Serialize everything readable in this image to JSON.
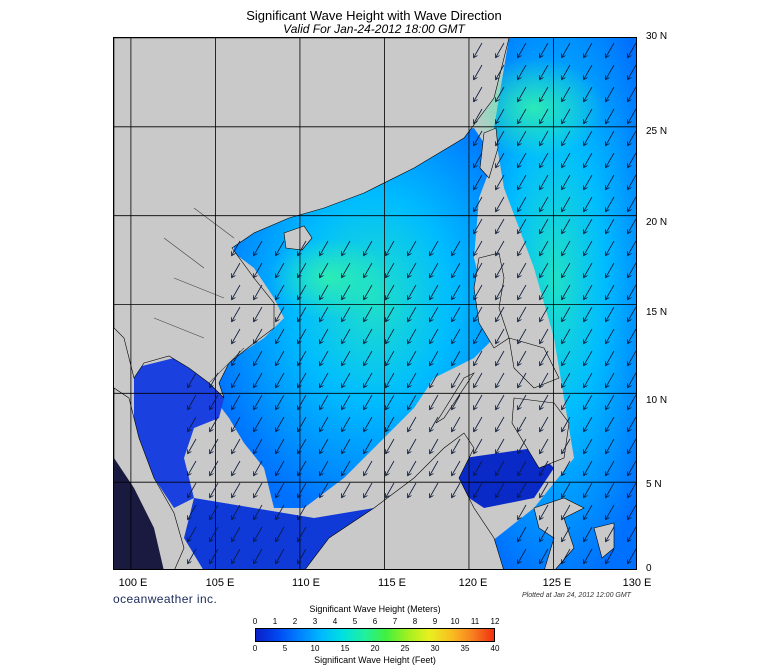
{
  "title": "Significant Wave Height with Wave Direction",
  "subtitle": "Valid For Jan-24-2012 18:00 GMT",
  "lat_labels": [
    "30 N",
    "25 N",
    "20 N",
    "15 N",
    "10 N",
    "5 N",
    "0"
  ],
  "lon_labels": [
    "100 E",
    "105 E",
    "110 E",
    "115 E",
    "120 E",
    "125 E",
    "130 E"
  ],
  "brand": "oceanweather inc.",
  "plotted": "Plotted at Jan 24, 2012 12:00 GMT",
  "colorbar": {
    "title_top": "Significant Wave Height (Meters)",
    "title_bottom": "Significant Wave Height (Feet)",
    "meters": [
      "0",
      "1",
      "2",
      "3",
      "4",
      "5",
      "6",
      "7",
      "8",
      "9",
      "10",
      "11",
      "12"
    ],
    "feet": [
      "0",
      "5",
      "10",
      "15",
      "20",
      "25",
      "30",
      "35",
      "40"
    ],
    "colors": [
      "#0a1fc8",
      "#0048f0",
      "#0080ff",
      "#00b8ff",
      "#00e0e0",
      "#20f0a0",
      "#40f040",
      "#a0f020",
      "#e8f020",
      "#f8c020",
      "#f88020",
      "#f03010"
    ]
  },
  "colors": {
    "land": "#c9c9c9",
    "calm_water": "#1848e8",
    "moderate_water": "#00c4ff",
    "rough_water": "#30f0b0"
  },
  "map_extent": {
    "lon": [
      99,
      130
    ],
    "lat": [
      0,
      30
    ]
  }
}
